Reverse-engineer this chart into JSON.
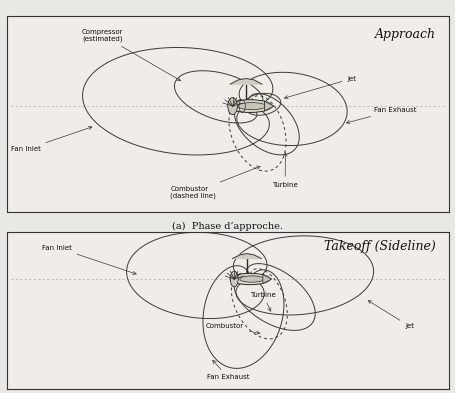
{
  "bg_color": "#e8e8e4",
  "panel_bg": "#f0ede8",
  "line_color": "#2a2a2a",
  "lobe_color": "#3a3a3a",
  "dashed_color": "#3a3a3a",
  "title_approach": "Approach",
  "title_takeoff": "Takeoff (Sideline)",
  "caption": "(a)  Phase d’approche.",
  "font_size_title": 9,
  "font_size_label": 5,
  "font_size_caption": 7,
  "fig_width": 4.56,
  "fig_height": 3.93,
  "fig_dpi": 100
}
